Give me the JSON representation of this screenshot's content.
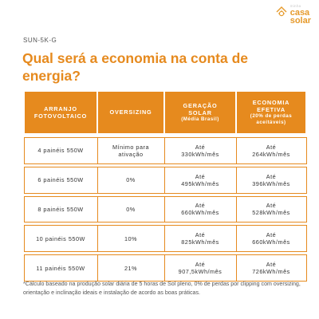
{
  "logo": {
    "small": "minha",
    "line1": "casa",
    "line2": "solar"
  },
  "model": "SUN-5K-G",
  "title": "Qual será a economia na conta de energia?",
  "table": {
    "headers": [
      {
        "line1": "ARRANJO",
        "line2": "FOTOVOLTAICO",
        "sub": ""
      },
      {
        "line1": "OVERSIZING",
        "line2": "",
        "sub": ""
      },
      {
        "line1": "GERAÇÃO",
        "line2": "SOLAR",
        "sub": "(Média Brasil)"
      },
      {
        "line1": "ECONOMIA",
        "line2": "EFETIVA",
        "sub": "(20% de perdas aceitáveis)"
      }
    ],
    "rows": [
      {
        "arranjo": "4 painéis 550W",
        "oversizing": "Mínimo para ativação",
        "geracao_a": "Até",
        "geracao_b": "330kWh/mês",
        "economia_a": "Até",
        "economia_b": "264kWh/mês"
      },
      {
        "arranjo": "6 painéis 550W",
        "oversizing": "0%",
        "geracao_a": "Até",
        "geracao_b": "495kWh/mês",
        "economia_a": "Até",
        "economia_b": "396kWh/mês"
      },
      {
        "arranjo": "8 painéis 550W",
        "oversizing": "0%",
        "geracao_a": "Até",
        "geracao_b": "660kWh/mês",
        "economia_a": "Até",
        "economia_b": "528kWh/mês"
      },
      {
        "arranjo": "10 painéis 550W",
        "oversizing": "10%",
        "geracao_a": "Até",
        "geracao_b": "825kWh/mês",
        "economia_a": "Até",
        "economia_b": "660kWh/mês"
      },
      {
        "arranjo": "11 painéis 550W",
        "oversizing": "21%",
        "geracao_a": "Até",
        "geracao_b": "907,5kWh/mês",
        "economia_a": "Até",
        "economia_b": "726kWh/mês"
      }
    ]
  },
  "footnote": "*Cálculo baseado na produção solar diária de 5 horas de Sol pleno, 0% de perdas por clipping com oversizing, orientação e inclinação ideais e instalação de acordo as boas práticas.",
  "colors": {
    "accent": "#e68a1e",
    "text": "#333333",
    "background": "#ffffff"
  }
}
